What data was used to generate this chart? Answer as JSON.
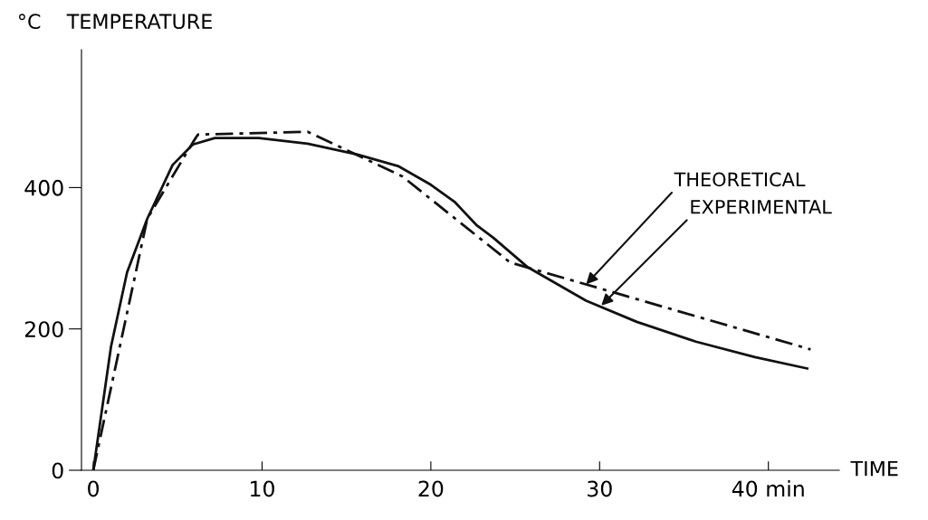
{
  "chart_data": {
    "type": "line",
    "xlabel": "TIME",
    "ylabel": "°C    TEMPERATURE",
    "xlim": [
      -0.7,
      44.2
    ],
    "ylim": [
      0,
      595
    ],
    "xticks": [
      0,
      10,
      20,
      30,
      {
        "value": 40,
        "label": "40 min"
      }
    ],
    "yticks": [
      0,
      200,
      400
    ],
    "grid": false,
    "legend": false,
    "marker": "none",
    "series": [
      {
        "color": "#111111",
        "line_style": "dashdot",
        "x": [
          0,
          3.2,
          5.9,
          6.2,
          12.7,
          18.3,
          24.7,
          42.5
        ],
        "values": [
          0,
          356,
          464,
          475,
          479,
          416,
          294,
          171
        ]
      },
      {
        "color": "#111111",
        "line_style": "solid",
        "x": [
          0,
          1.05,
          2.0,
          3.2,
          4.7,
          5.9,
          7.2,
          9.8,
          12.7,
          15.6,
          18.1,
          20.0,
          21.4,
          22.7,
          23.7,
          25.7,
          29.2,
          32.2,
          35.7,
          39.2,
          42.3
        ],
        "values": [
          0,
          175,
          280,
          356,
          432,
          461,
          470,
          470,
          462,
          447,
          430,
          404,
          380,
          347,
          329,
          288,
          240,
          210,
          182,
          160,
          144
        ]
      }
    ],
    "annotations": [
      {
        "text": "THEORETICAL",
        "x": 29.2,
        "y": 263
      },
      {
        "text": "EXPERIMENTAL",
        "x": 30.1,
        "y": 233
      }
    ]
  }
}
